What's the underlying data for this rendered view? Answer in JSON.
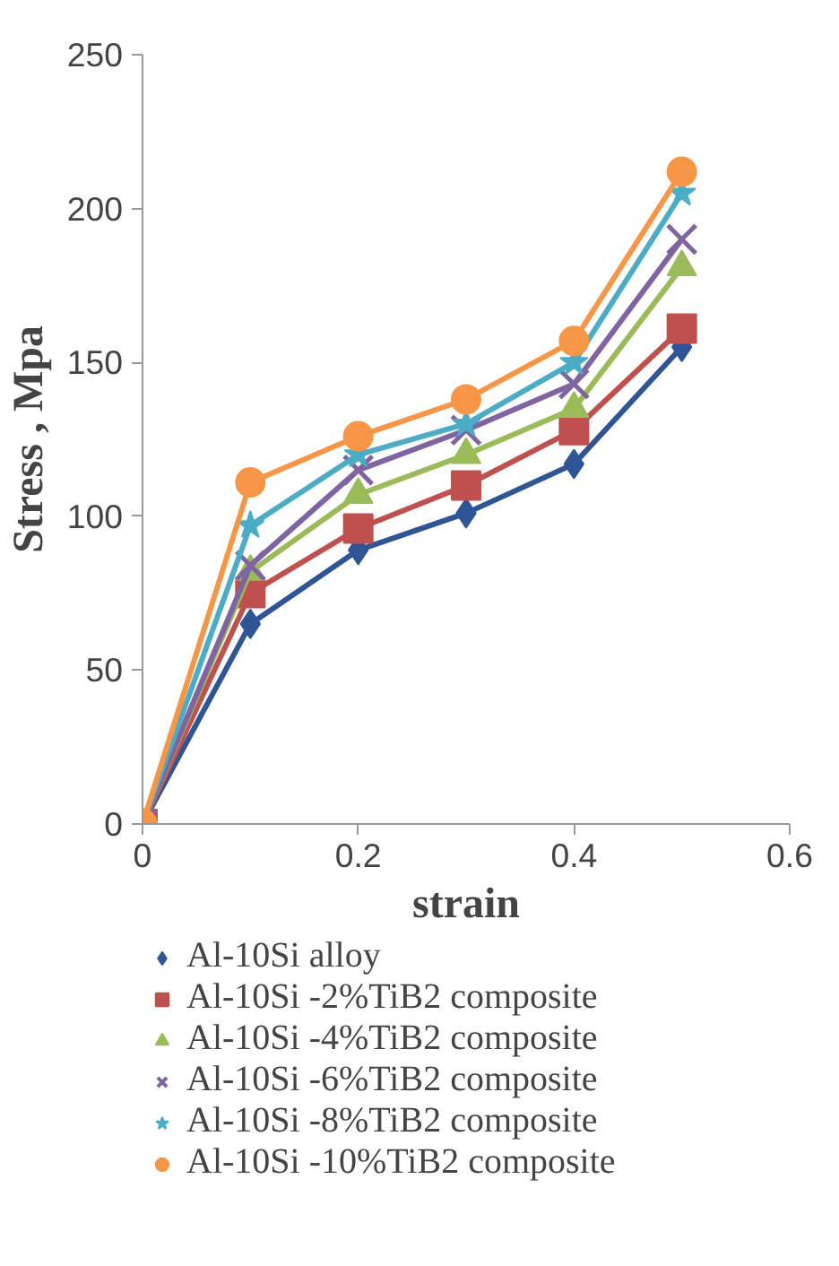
{
  "chart_data": {
    "type": "line",
    "xlabel": "strain",
    "ylabel": "Stress , Mpa",
    "x": [
      0,
      0.1,
      0.2,
      0.3,
      0.4,
      0.5
    ],
    "xlim": [
      0,
      0.6
    ],
    "xticks": [
      0,
      0.2,
      0.4,
      0.6
    ],
    "ylim": [
      0,
      250
    ],
    "yticks": [
      0,
      50,
      100,
      150,
      200,
      250
    ],
    "grid": false,
    "legend": "bottom",
    "line_style": "solid",
    "series": [
      {
        "name": "Al-10Si alloy",
        "color": "#2f5597",
        "marker": "diamond",
        "values": [
          0,
          65,
          89,
          101,
          117,
          155
        ]
      },
      {
        "name": "Al-10Si -2%TiB2 composite",
        "color": "#c0504d",
        "marker": "square",
        "values": [
          0,
          75,
          96,
          110,
          128,
          161
        ]
      },
      {
        "name": "Al-10Si -4%TiB2 composite",
        "color": "#9bbb59",
        "marker": "triangle",
        "values": [
          0,
          82,
          107,
          120,
          135,
          181
        ]
      },
      {
        "name": "Al-10Si -6%TiB2 composite",
        "color": "#8064a2",
        "marker": "cross",
        "values": [
          0,
          84,
          115,
          128,
          143,
          190
        ]
      },
      {
        "name": "Al-10Si -8%TiB2 composite",
        "color": "#4bacc6",
        "marker": "star",
        "values": [
          0,
          97,
          120,
          130,
          150,
          205
        ]
      },
      {
        "name": "Al-10Si -10%TiB2 composite",
        "color": "#f79646",
        "marker": "circle",
        "values": [
          0,
          111,
          126,
          138,
          157,
          212
        ]
      }
    ]
  }
}
